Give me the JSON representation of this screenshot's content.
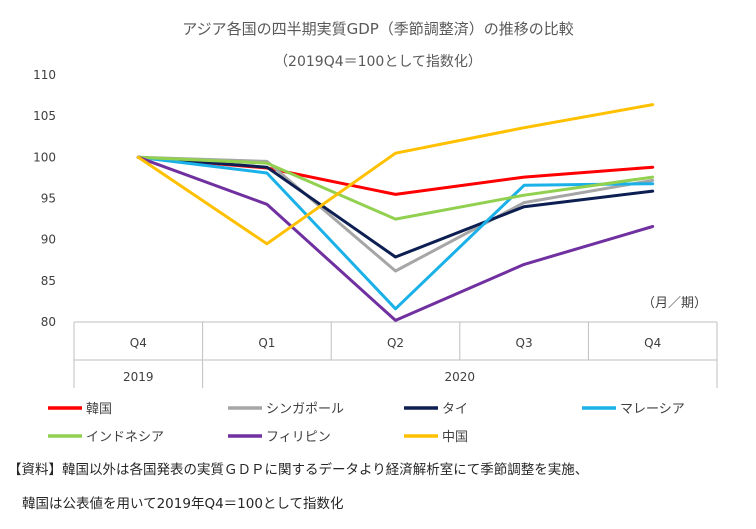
{
  "chart_data": {
    "type": "line",
    "title": "アジア各国の四半期実質GDP（季節調整済）の推移の比較",
    "subtitle": "（2019Q4＝100として指数化）",
    "unit_label": "（月／期）",
    "categories": [
      "Q4",
      "Q1",
      "Q2",
      "Q3",
      "Q4"
    ],
    "year_groups": [
      {
        "label": "2019",
        "span": 1
      },
      {
        "label": "2020",
        "span": 4
      }
    ],
    "ylim": [
      80,
      110
    ],
    "yticks": [
      80,
      85,
      90,
      95,
      100,
      105,
      110
    ],
    "grid": false,
    "legend_position": "bottom",
    "series": [
      {
        "name": "韓国",
        "color": "#ff0000",
        "values": [
          100,
          98.7,
          95.5,
          97.6,
          98.8
        ]
      },
      {
        "name": "シンガポール",
        "color": "#a6a6a6",
        "values": [
          100,
          99.5,
          86.2,
          94.5,
          97.2
        ]
      },
      {
        "name": "タイ",
        "color": "#0d1e52",
        "values": [
          100,
          98.8,
          87.9,
          94.0,
          95.9
        ]
      },
      {
        "name": "マレーシア",
        "color": "#1ab0e8",
        "values": [
          100,
          98.1,
          81.6,
          96.6,
          96.8
        ]
      },
      {
        "name": "インドネシア",
        "color": "#92d050",
        "values": [
          100,
          99.3,
          92.5,
          95.4,
          97.6
        ]
      },
      {
        "name": "フィリピン",
        "color": "#7030a0",
        "values": [
          100,
          94.3,
          80.2,
          87.0,
          91.6
        ]
      },
      {
        "name": "中国",
        "color": "#ffc000",
        "values": [
          100,
          89.5,
          100.5,
          103.6,
          106.4
        ]
      }
    ]
  },
  "notes": {
    "line1": "【資料】韓国以外は各国発表の実質ＧＤＰに関するデータより経済解析室にて季節調整を実施、",
    "line2": "韓国は公表値を用いて2019年Q4＝100として指数化"
  }
}
